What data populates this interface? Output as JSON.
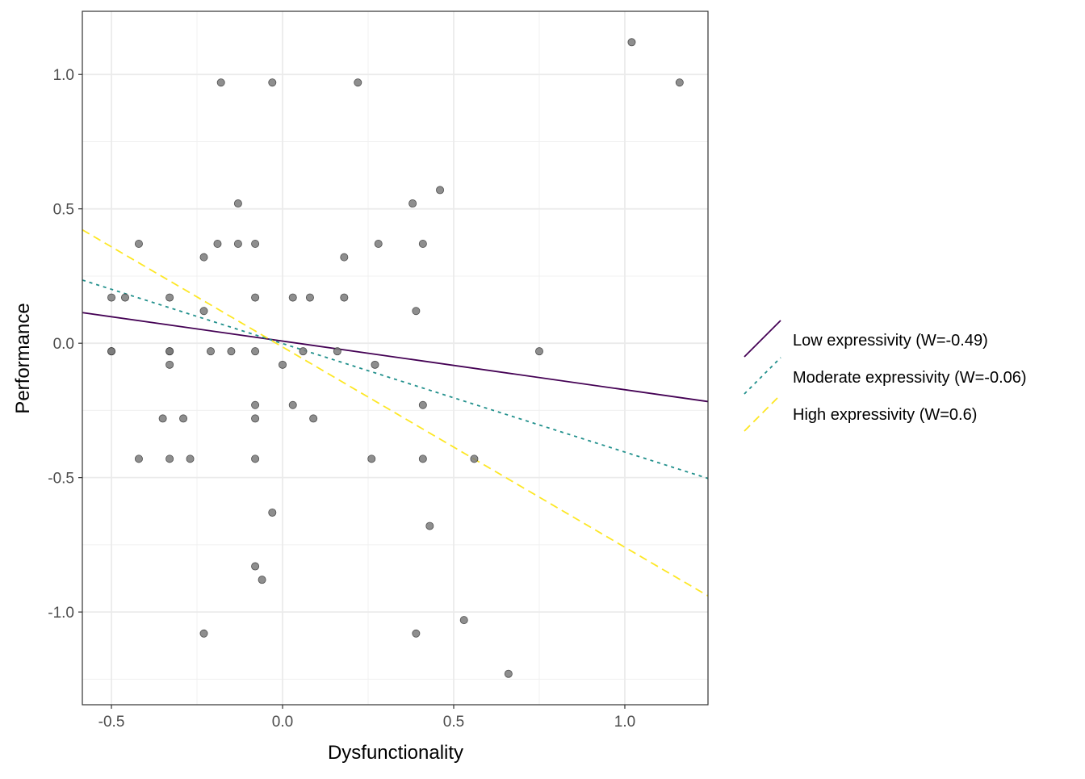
{
  "chart_data": {
    "type": "scatter",
    "title": "",
    "xlabel": "Dysfunctionality",
    "ylabel": "Performance",
    "xlim": [
      -0.585,
      1.243
    ],
    "ylim": [
      -1.345,
      1.235
    ],
    "xticks": [
      -0.5,
      0.0,
      0.5,
      1.0
    ],
    "xtick_labels": [
      "-0.5",
      "0.0",
      "0.5",
      "1.0"
    ],
    "yticks": [
      -1.0,
      -0.5,
      0.0,
      0.5,
      1.0
    ],
    "ytick_labels": [
      "-1.0",
      "-0.5",
      "0.0",
      "0.5",
      "1.0"
    ],
    "grid": true,
    "legend_position": "right",
    "points": [
      [
        1.02,
        1.12
      ],
      [
        1.16,
        0.97
      ],
      [
        -0.18,
        0.97
      ],
      [
        -0.03,
        0.97
      ],
      [
        0.22,
        0.97
      ],
      [
        0.46,
        0.57
      ],
      [
        0.38,
        0.52
      ],
      [
        -0.13,
        0.52
      ],
      [
        -0.42,
        0.37
      ],
      [
        -0.19,
        0.37
      ],
      [
        -0.13,
        0.37
      ],
      [
        -0.08,
        0.37
      ],
      [
        0.28,
        0.37
      ],
      [
        0.41,
        0.37
      ],
      [
        -0.23,
        0.32
      ],
      [
        0.18,
        0.32
      ],
      [
        -0.5,
        0.17
      ],
      [
        -0.46,
        0.17
      ],
      [
        -0.33,
        0.17
      ],
      [
        -0.08,
        0.17
      ],
      [
        0.03,
        0.17
      ],
      [
        0.08,
        0.17
      ],
      [
        0.18,
        0.17
      ],
      [
        -0.23,
        0.12
      ],
      [
        0.39,
        0.12
      ],
      [
        -0.5,
        -0.03
      ],
      [
        -0.5,
        -0.03
      ],
      [
        -0.33,
        -0.03
      ],
      [
        -0.33,
        -0.03
      ],
      [
        -0.21,
        -0.03
      ],
      [
        -0.15,
        -0.03
      ],
      [
        -0.08,
        -0.03
      ],
      [
        0.06,
        -0.03
      ],
      [
        0.16,
        -0.03
      ],
      [
        0.75,
        -0.03
      ],
      [
        -0.33,
        -0.08
      ],
      [
        0.0,
        -0.08
      ],
      [
        0.27,
        -0.08
      ],
      [
        -0.08,
        -0.23
      ],
      [
        0.03,
        -0.23
      ],
      [
        0.41,
        -0.23
      ],
      [
        -0.35,
        -0.28
      ],
      [
        -0.29,
        -0.28
      ],
      [
        -0.08,
        -0.28
      ],
      [
        0.09,
        -0.28
      ],
      [
        -0.42,
        -0.43
      ],
      [
        -0.33,
        -0.43
      ],
      [
        -0.27,
        -0.43
      ],
      [
        -0.08,
        -0.43
      ],
      [
        0.26,
        -0.43
      ],
      [
        0.41,
        -0.43
      ],
      [
        0.56,
        -0.43
      ],
      [
        -0.03,
        -0.63
      ],
      [
        0.43,
        -0.68
      ],
      [
        -0.08,
        -0.83
      ],
      [
        -0.06,
        -0.88
      ],
      [
        -0.23,
        -1.08
      ],
      [
        0.39,
        -1.08
      ],
      [
        0.53,
        -1.03
      ],
      [
        0.66,
        -1.23
      ]
    ],
    "point_color": "#7a7a7a",
    "lines": [
      {
        "name": "Low expressivity (W=-0.49)",
        "color": "#440154",
        "dash": "solid",
        "x": [
          -0.585,
          1.243
        ],
        "y": [
          0.114,
          -0.217
        ]
      },
      {
        "name": "Moderate expressivity (W=-0.06)",
        "color": "#21908C",
        "dash": "dotted",
        "x": [
          -0.585,
          1.243
        ],
        "y": [
          0.235,
          -0.503
        ]
      },
      {
        "name": "High expressivity (W=0.6)",
        "color": "#FDE725",
        "dash": "dashed",
        "x": [
          -0.585,
          1.243
        ],
        "y": [
          0.422,
          -0.94
        ]
      }
    ]
  }
}
